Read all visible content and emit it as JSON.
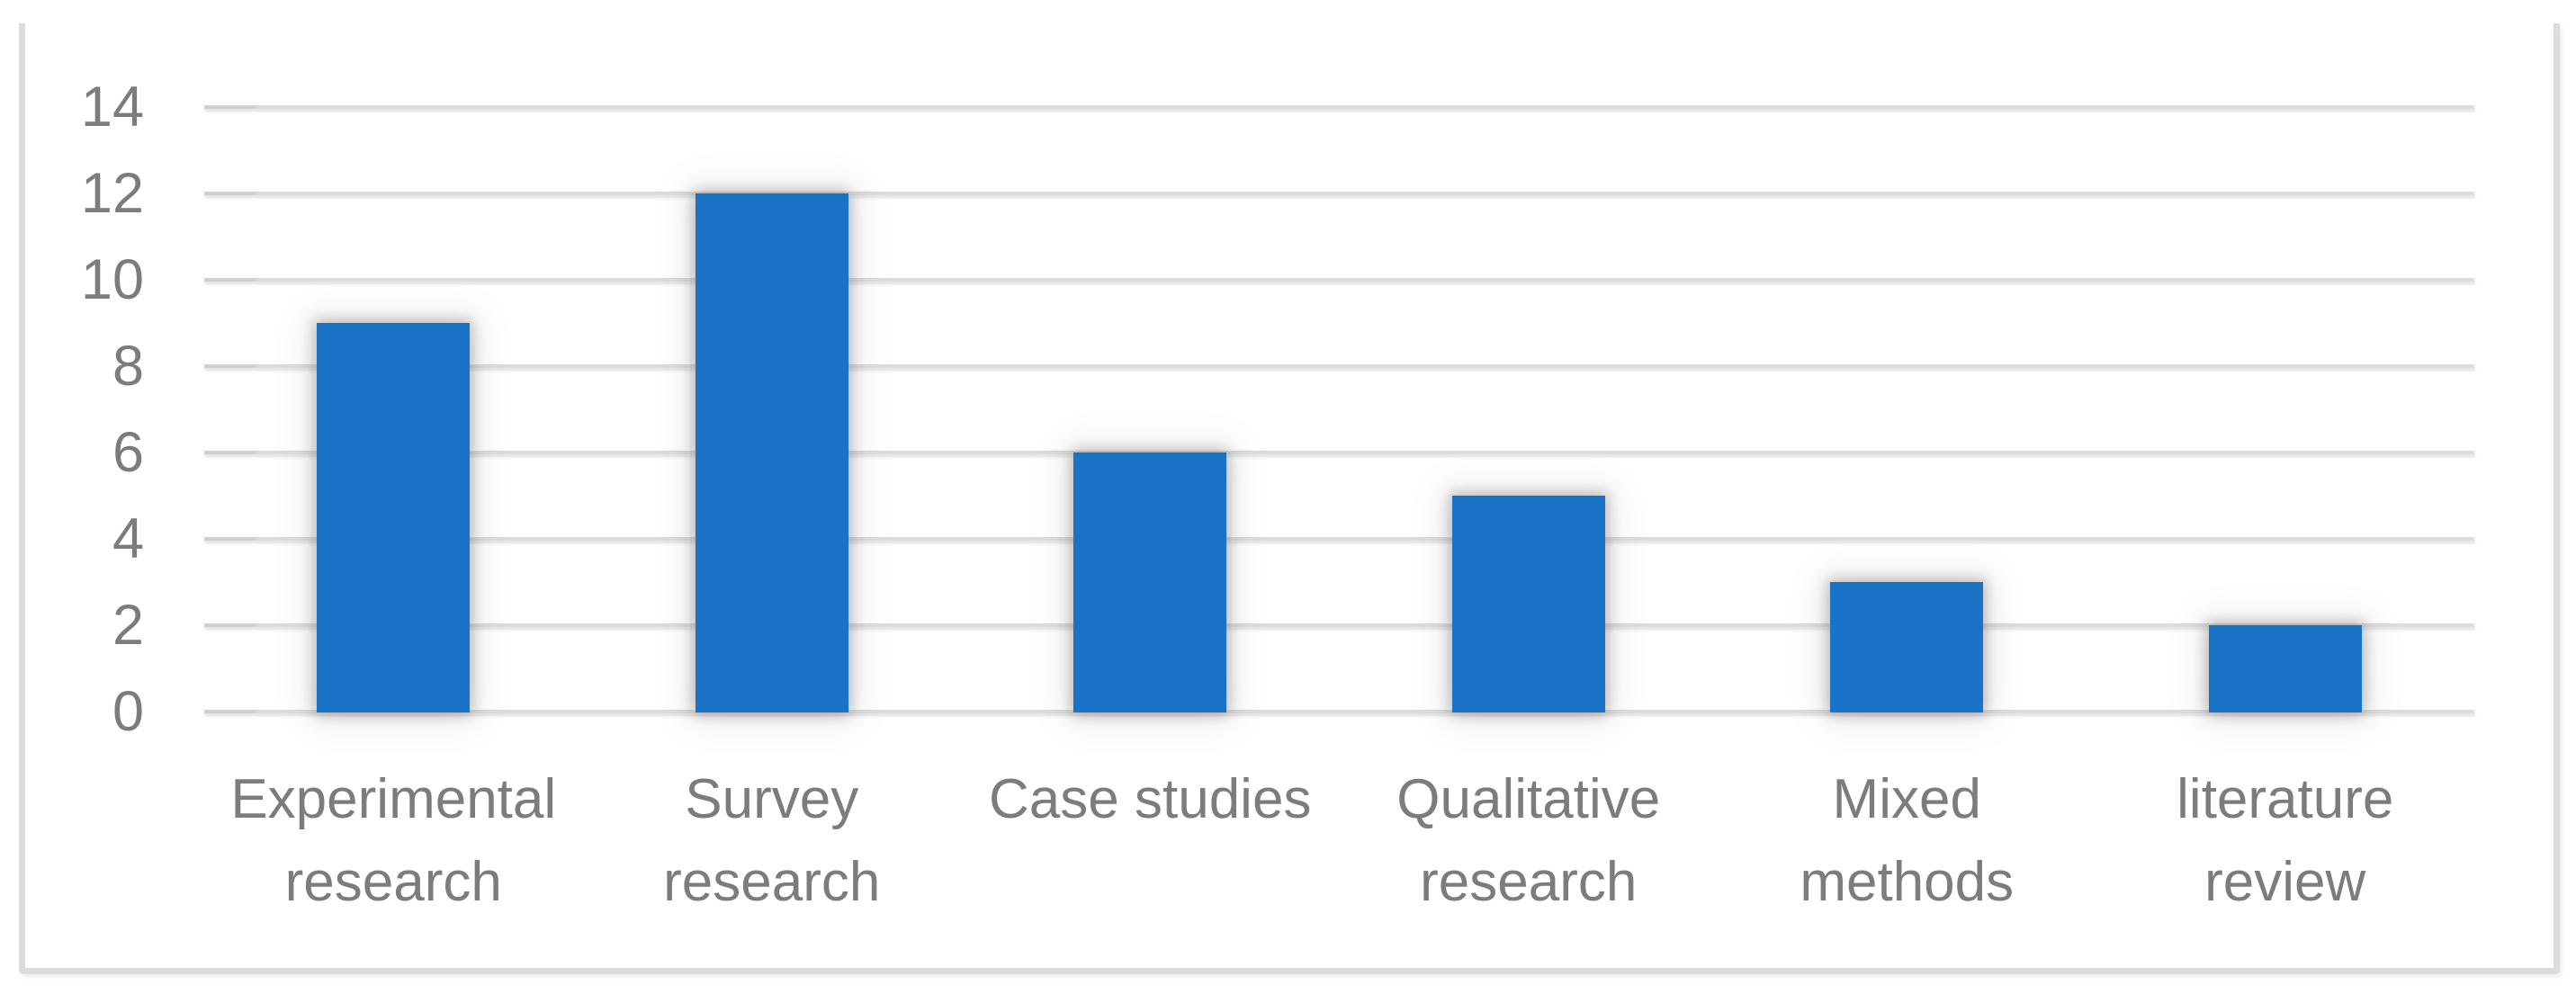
{
  "chart_data": {
    "type": "bar",
    "title": "",
    "xlabel": "",
    "ylabel": "",
    "legend": "none",
    "grid": "horizontal",
    "categories": [
      "Experimental research",
      "Survey research",
      "Case studies",
      "Qualitative research",
      "Mixed methods",
      "literature review"
    ],
    "category_label_lines": [
      [
        "Experimental",
        "research"
      ],
      [
        "Survey",
        "research"
      ],
      [
        "Case studies"
      ],
      [
        "Qualitative",
        "research"
      ],
      [
        "Mixed",
        "methods"
      ],
      [
        "literature",
        "review"
      ]
    ],
    "values": [
      9,
      12,
      6,
      5,
      3,
      2
    ],
    "ylim": [
      0,
      14
    ],
    "yticks": [
      14,
      12,
      10,
      8,
      6,
      4,
      2,
      0
    ],
    "colors": {
      "bar_fill": "#1B73C7",
      "gridline": "#DCDCDC",
      "tick_stub": "#D0D0D0",
      "axis_text": "#7C7C7C",
      "frame_border": "#DBDBDB",
      "background": "#FFFFFF"
    }
  }
}
